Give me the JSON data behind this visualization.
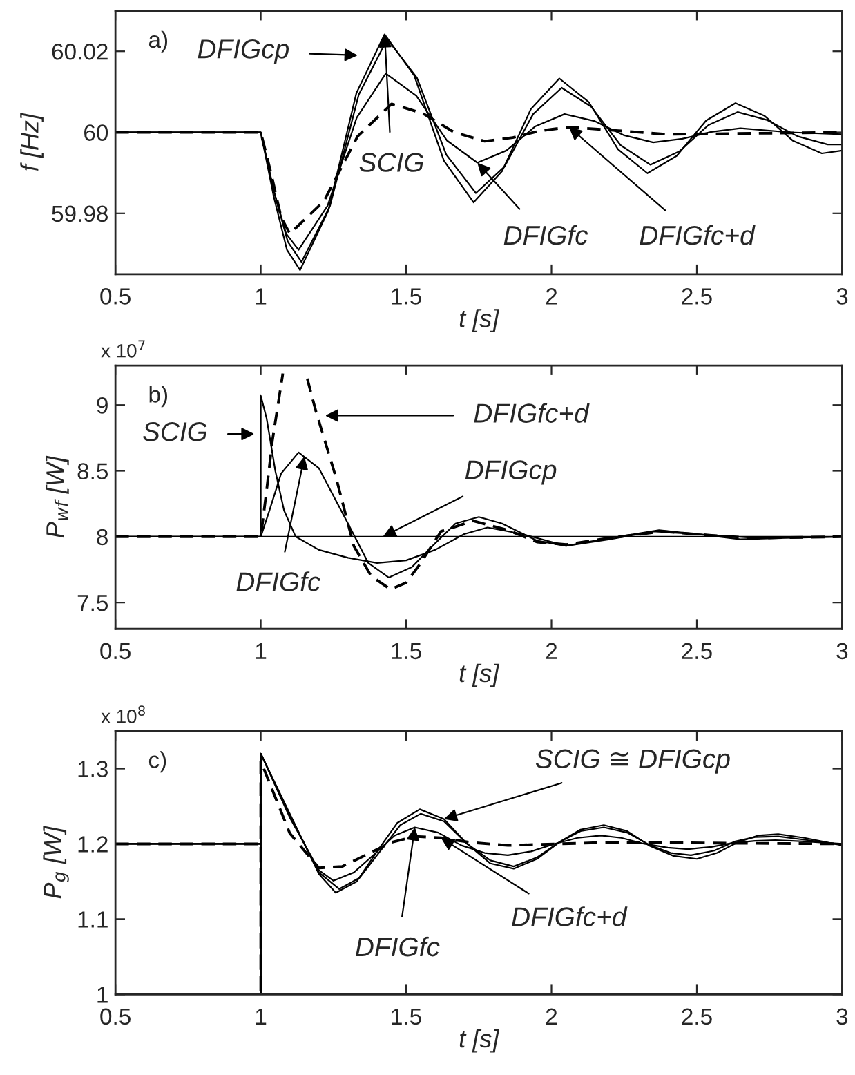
{
  "chart_data": [
    {
      "type": "line",
      "xlabel": "t [s]",
      "ylabel": "f [Hz]",
      "xlim": [
        0.5,
        3
      ],
      "ylim": [
        59.965,
        60.03
      ],
      "xticks": [
        0.5,
        1,
        1.5,
        2,
        2.5,
        3
      ],
      "yticks": [
        59.98,
        60,
        60.02
      ],
      "grid": false,
      "series": [
        {
          "color": "#000000",
          "line_style": "solid",
          "x": [
            0.5,
            1,
            1.045,
            1.09,
            1.135,
            1.232,
            1.329,
            1.426,
            1.528,
            1.63,
            1.732,
            1.83,
            1.929,
            2.027,
            2.128,
            2.229,
            2.33,
            2.431,
            2.532,
            2.633,
            2.732,
            2.831,
            2.93,
            3
          ],
          "values": [
            60,
            60,
            59.984,
            59.971,
            59.966,
            59.9806,
            60.0097,
            60.0242,
            60.014,
            59.993,
            59.9827,
            59.9904,
            60.0057,
            60.0133,
            60.0075,
            59.9958,
            59.9899,
            59.9942,
            60.0029,
            60.0072,
            60.0041,
            59.9979,
            59.9948,
            59.9955
          ]
        },
        {
          "color": "#000000",
          "line_style": "solid",
          "x": [
            0.5,
            1,
            1.047,
            1.093,
            1.14,
            1.238,
            1.337,
            1.435,
            1.537,
            1.638,
            1.74,
            1.838,
            1.937,
            2.035,
            2.137,
            2.238,
            2.34,
            2.44,
            2.54,
            2.64,
            2.743,
            2.847,
            2.95,
            3
          ],
          "values": [
            60,
            60,
            59.985,
            59.973,
            59.968,
            59.9818,
            60.0093,
            60.023,
            60.0135,
            59.9945,
            59.985,
            59.9915,
            60.0045,
            60.011,
            60.0063,
            59.9968,
            59.992,
            59.9953,
            60.0018,
            60.005,
            60.003,
            59.999,
            59.997,
            59.997
          ]
        },
        {
          "color": "#000000",
          "line_style": "solid",
          "x": [
            0.5,
            1,
            1.043,
            1.087,
            1.13,
            1.23,
            1.33,
            1.43,
            1.535,
            1.64,
            1.745,
            1.845,
            1.945,
            2.045,
            2.147,
            2.248,
            2.35,
            2.45,
            2.55,
            2.65,
            2.82,
            3
          ],
          "values": [
            60,
            60,
            59.986,
            59.975,
            59.971,
            59.9819,
            60.0036,
            60.0145,
            60.009,
            59.998,
            59.9925,
            59.9955,
            60.0015,
            60.0045,
            60.0028,
            59.9993,
            59.9975,
            59.9984,
            60.0001,
            60.001,
            60.0,
            59.9995
          ]
        },
        {
          "color": "#000000",
          "line_style": "dashed",
          "x": [
            0.5,
            1,
            1.035,
            1.07,
            1.1,
            1.217,
            1.333,
            1.45,
            1.557,
            1.663,
            1.77,
            1.867,
            1.963,
            2.06,
            2.23,
            2.4,
            3
          ],
          "values": [
            60,
            60,
            59.99,
            59.979,
            59.975,
            59.983,
            59.999,
            60.007,
            60.0047,
            60.0001,
            59.9978,
            59.9987,
            60.0004,
            60.0013,
            60.0004,
            59.9995,
            60
          ]
        }
      ],
      "annotations": [
        "a)",
        "DFIGcp",
        {
          "text": "SCIG",
          "x": 1.426,
          "y": 60.0242
        },
        {
          "text": "DFIGfc",
          "x": 1.745,
          "y": 59.9925
        },
        {
          "text": "DFIGfc+d",
          "x": 2.06,
          "y": 60.0013
        }
      ]
    },
    {
      "type": "line",
      "xlabel": "t [s]",
      "ylabel": "P$_{wf}$ [W]",
      "xlim": [
        0.5,
        3
      ],
      "ylim": [
        7.3,
        9.3
      ],
      "xticks": [
        0.5,
        1,
        1.5,
        2,
        2.5,
        3
      ],
      "yticks": [
        7.5,
        8,
        8.5,
        9
      ],
      "grid": false,
      "series": [
        {
          "color": "#000000",
          "line_style": "solid",
          "x": [
            0.5,
            1,
            1,
            1.02,
            1.05,
            1.08,
            1.12,
            1.2,
            1.3,
            1.4,
            1.5,
            1.6,
            1.7,
            1.78,
            1.9,
            2.05,
            2.2,
            2.35,
            2.5,
            2.7,
            3
          ],
          "values": [
            8,
            8,
            9.07,
            8.9,
            8.5,
            8.2,
            8.0,
            7.9,
            7.84,
            7.8,
            7.82,
            7.9,
            8.02,
            8.07,
            8.02,
            7.93,
            7.98,
            8.04,
            8.02,
            7.99,
            8
          ]
        },
        {
          "color": "#000000",
          "line_style": "solid",
          "x": [
            0.5,
            1,
            1.03,
            1.07,
            1.13,
            1.2,
            1.3,
            1.37,
            1.44,
            1.52,
            1.6,
            1.67,
            1.75,
            1.83,
            1.95,
            2.05,
            2.2,
            2.37,
            2.5,
            2.65,
            2.8,
            3
          ],
          "values": [
            8,
            8,
            8.2,
            8.48,
            8.64,
            8.52,
            8.1,
            7.8,
            7.69,
            7.77,
            7.95,
            8.1,
            8.15,
            8.1,
            7.97,
            7.93,
            7.99,
            8.05,
            8.02,
            7.98,
            7.99,
            8
          ]
        },
        {
          "color": "#000000",
          "line_style": "solid",
          "x": [
            0.5,
            3
          ],
          "values": [
            8,
            8
          ]
        },
        {
          "color": "#000000",
          "line_style": "dashed",
          "x": [
            0.5,
            1,
            1.02,
            1.04,
            1.076,
            1.11,
            1.13,
            1.16,
            1.19,
            1.26,
            1.32,
            1.38,
            1.446,
            1.5,
            1.547,
            1.62,
            1.73,
            1.85,
            1.95,
            2.05,
            2.2,
            2.38,
            2.55,
            2.7,
            3
          ],
          "values": [
            8,
            8,
            8.35,
            8.73,
            9.24,
            null,
            null,
            9.2,
            8.95,
            8.44,
            7.93,
            7.7,
            7.6,
            7.65,
            7.79,
            8.04,
            8.12,
            8.05,
            7.96,
            7.94,
            7.99,
            8.04,
            8.01,
            7.99,
            8
          ]
        }
      ],
      "annotations": [
        "b)",
        "x 10$^{7}$",
        "SCIG",
        "DFIGfc+d",
        {
          "text": "DFIGcp",
          "x": 1.42,
          "y": 8
        },
        {
          "text": "DFIGfc",
          "x": 1.15,
          "y": 8.61
        }
      ]
    },
    {
      "type": "line",
      "xlabel": "t [s]",
      "ylabel": "P$_{g}$ [W]",
      "xlim": [
        0.5,
        3
      ],
      "ylim": [
        1,
        1.35
      ],
      "xticks": [
        0.5,
        1,
        1.5,
        2,
        2.5,
        3
      ],
      "yticks": [
        1,
        1.1,
        1.2,
        1.3
      ],
      "grid": false,
      "series": [
        {
          "color": "#000000",
          "line_style": "solid",
          "x": [
            0.5,
            1,
            1,
            1,
            1.1,
            1.2,
            1.258,
            1.33,
            1.4,
            1.47,
            1.547,
            1.63,
            1.71,
            1.79,
            1.87,
            1.95,
            2.03,
            2.1,
            2.18,
            2.26,
            2.34,
            2.42,
            2.5,
            2.57,
            2.64,
            2.71,
            2.78,
            2.87,
            3
          ],
          "values": [
            1.2,
            1.2,
            1,
            1.32,
            1.24,
            1.16,
            1.135,
            1.15,
            1.19,
            1.228,
            1.246,
            1.233,
            1.2,
            1.174,
            1.167,
            1.18,
            1.203,
            1.219,
            1.225,
            1.217,
            1.197,
            1.184,
            1.18,
            1.188,
            1.202,
            1.211,
            1.213,
            1.208,
            1.198
          ]
        },
        {
          "color": "#000000",
          "line_style": "solid",
          "x": [
            0.5,
            1,
            1,
            1,
            1.1,
            1.2,
            1.27,
            1.34,
            1.41,
            1.48,
            1.55,
            1.63,
            1.71,
            1.79,
            1.87,
            1.95,
            2.03,
            2.1,
            2.18,
            2.26,
            2.34,
            2.41,
            2.48,
            2.56,
            2.63,
            2.7,
            2.78,
            2.88,
            3
          ],
          "values": [
            1.2,
            1.2,
            1,
            1.32,
            1.238,
            1.162,
            1.14,
            1.155,
            1.19,
            1.225,
            1.24,
            1.23,
            1.2,
            1.178,
            1.17,
            1.182,
            1.203,
            1.217,
            1.222,
            1.215,
            1.198,
            1.188,
            1.185,
            1.191,
            1.203,
            1.209,
            1.21,
            1.205,
            1.199
          ]
        },
        {
          "color": "#000000",
          "line_style": "solid",
          "x": [
            0.5,
            1,
            1,
            1,
            1.1,
            1.2,
            1.25,
            1.32,
            1.39,
            1.46,
            1.53,
            1.61,
            1.69,
            1.77,
            1.85,
            1.93,
            2.01,
            2.09,
            2.17,
            2.24,
            2.32,
            2.4,
            2.47,
            2.55,
            2.62,
            2.7,
            2.77,
            2.88,
            3
          ],
          "values": [
            1.2,
            1.2,
            1,
            1.32,
            1.235,
            1.165,
            1.151,
            1.162,
            1.186,
            1.211,
            1.222,
            1.215,
            1.198,
            1.188,
            1.185,
            1.19,
            1.2,
            1.208,
            1.211,
            1.208,
            1.2,
            1.195,
            1.193,
            1.196,
            1.201,
            1.204,
            1.205,
            1.203,
            1.2
          ]
        },
        {
          "color": "#000000",
          "line_style": "dashed",
          "x": [
            0.5,
            1,
            1,
            1,
            1.1,
            1.2,
            1.28,
            1.36,
            1.45,
            1.53,
            1.62,
            1.72,
            1.85,
            2.2,
            3
          ],
          "values": [
            1.2,
            1.2,
            1,
            1.31,
            1.214,
            1.168,
            1.17,
            1.185,
            1.202,
            1.21,
            1.208,
            1.202,
            1.198,
            1.202,
            1.2
          ]
        }
      ],
      "annotations": [
        "c)",
        "x 10$^{8}$",
        {
          "text": "SCIG ≅ DFIGcp",
          "x": 1.63,
          "y": 1.233
        },
        {
          "text": "DFIGfc",
          "x": 1.53,
          "y": 1.222
        },
        {
          "text": "DFIGfc+d",
          "x": 1.62,
          "y": 1.208
        }
      ]
    }
  ]
}
